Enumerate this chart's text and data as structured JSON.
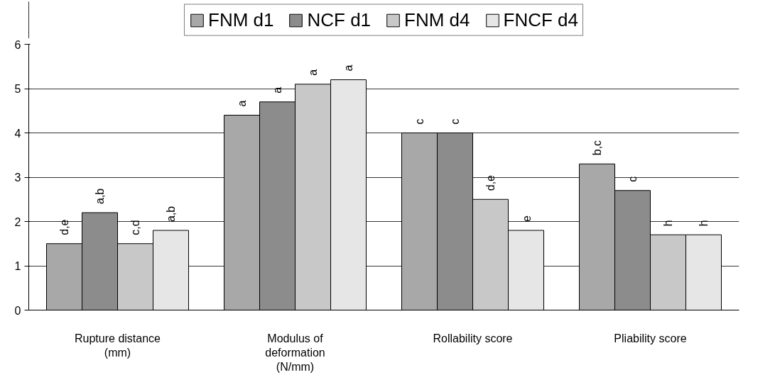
{
  "chart_data": {
    "type": "bar",
    "categories": [
      "Rupture distance (mm)",
      "Modulus of deformation (N/mm)",
      "Rollability score",
      "Pliability score"
    ],
    "series": [
      {
        "name": "FNM d1",
        "color": "#a8a8a8",
        "values": [
          1.5,
          4.4,
          4.0,
          3.3
        ],
        "value_labels": [
          "d,e",
          "a",
          "c",
          "b,c"
        ]
      },
      {
        "name": "NCF d1",
        "color": "#8c8c8c",
        "values": [
          2.2,
          4.7,
          4.0,
          2.7
        ],
        "value_labels": [
          "a,b",
          "a",
          "c",
          "c"
        ]
      },
      {
        "name": "FNM d4",
        "color": "#c8c8c8",
        "values": [
          1.5,
          5.1,
          2.5,
          1.7
        ],
        "value_labels": [
          "c,d",
          "a",
          "d,e",
          "h"
        ]
      },
      {
        "name": "FNCF d4",
        "color": "#e6e6e6",
        "values": [
          1.8,
          5.2,
          1.8,
          1.7
        ],
        "value_labels": [
          "a,b",
          "a",
          "e",
          "h"
        ]
      }
    ],
    "ylim": [
      0,
      6
    ],
    "yticks": [
      0,
      1,
      2,
      3,
      4,
      5,
      6
    ],
    "grid": "y",
    "legend": "top"
  }
}
